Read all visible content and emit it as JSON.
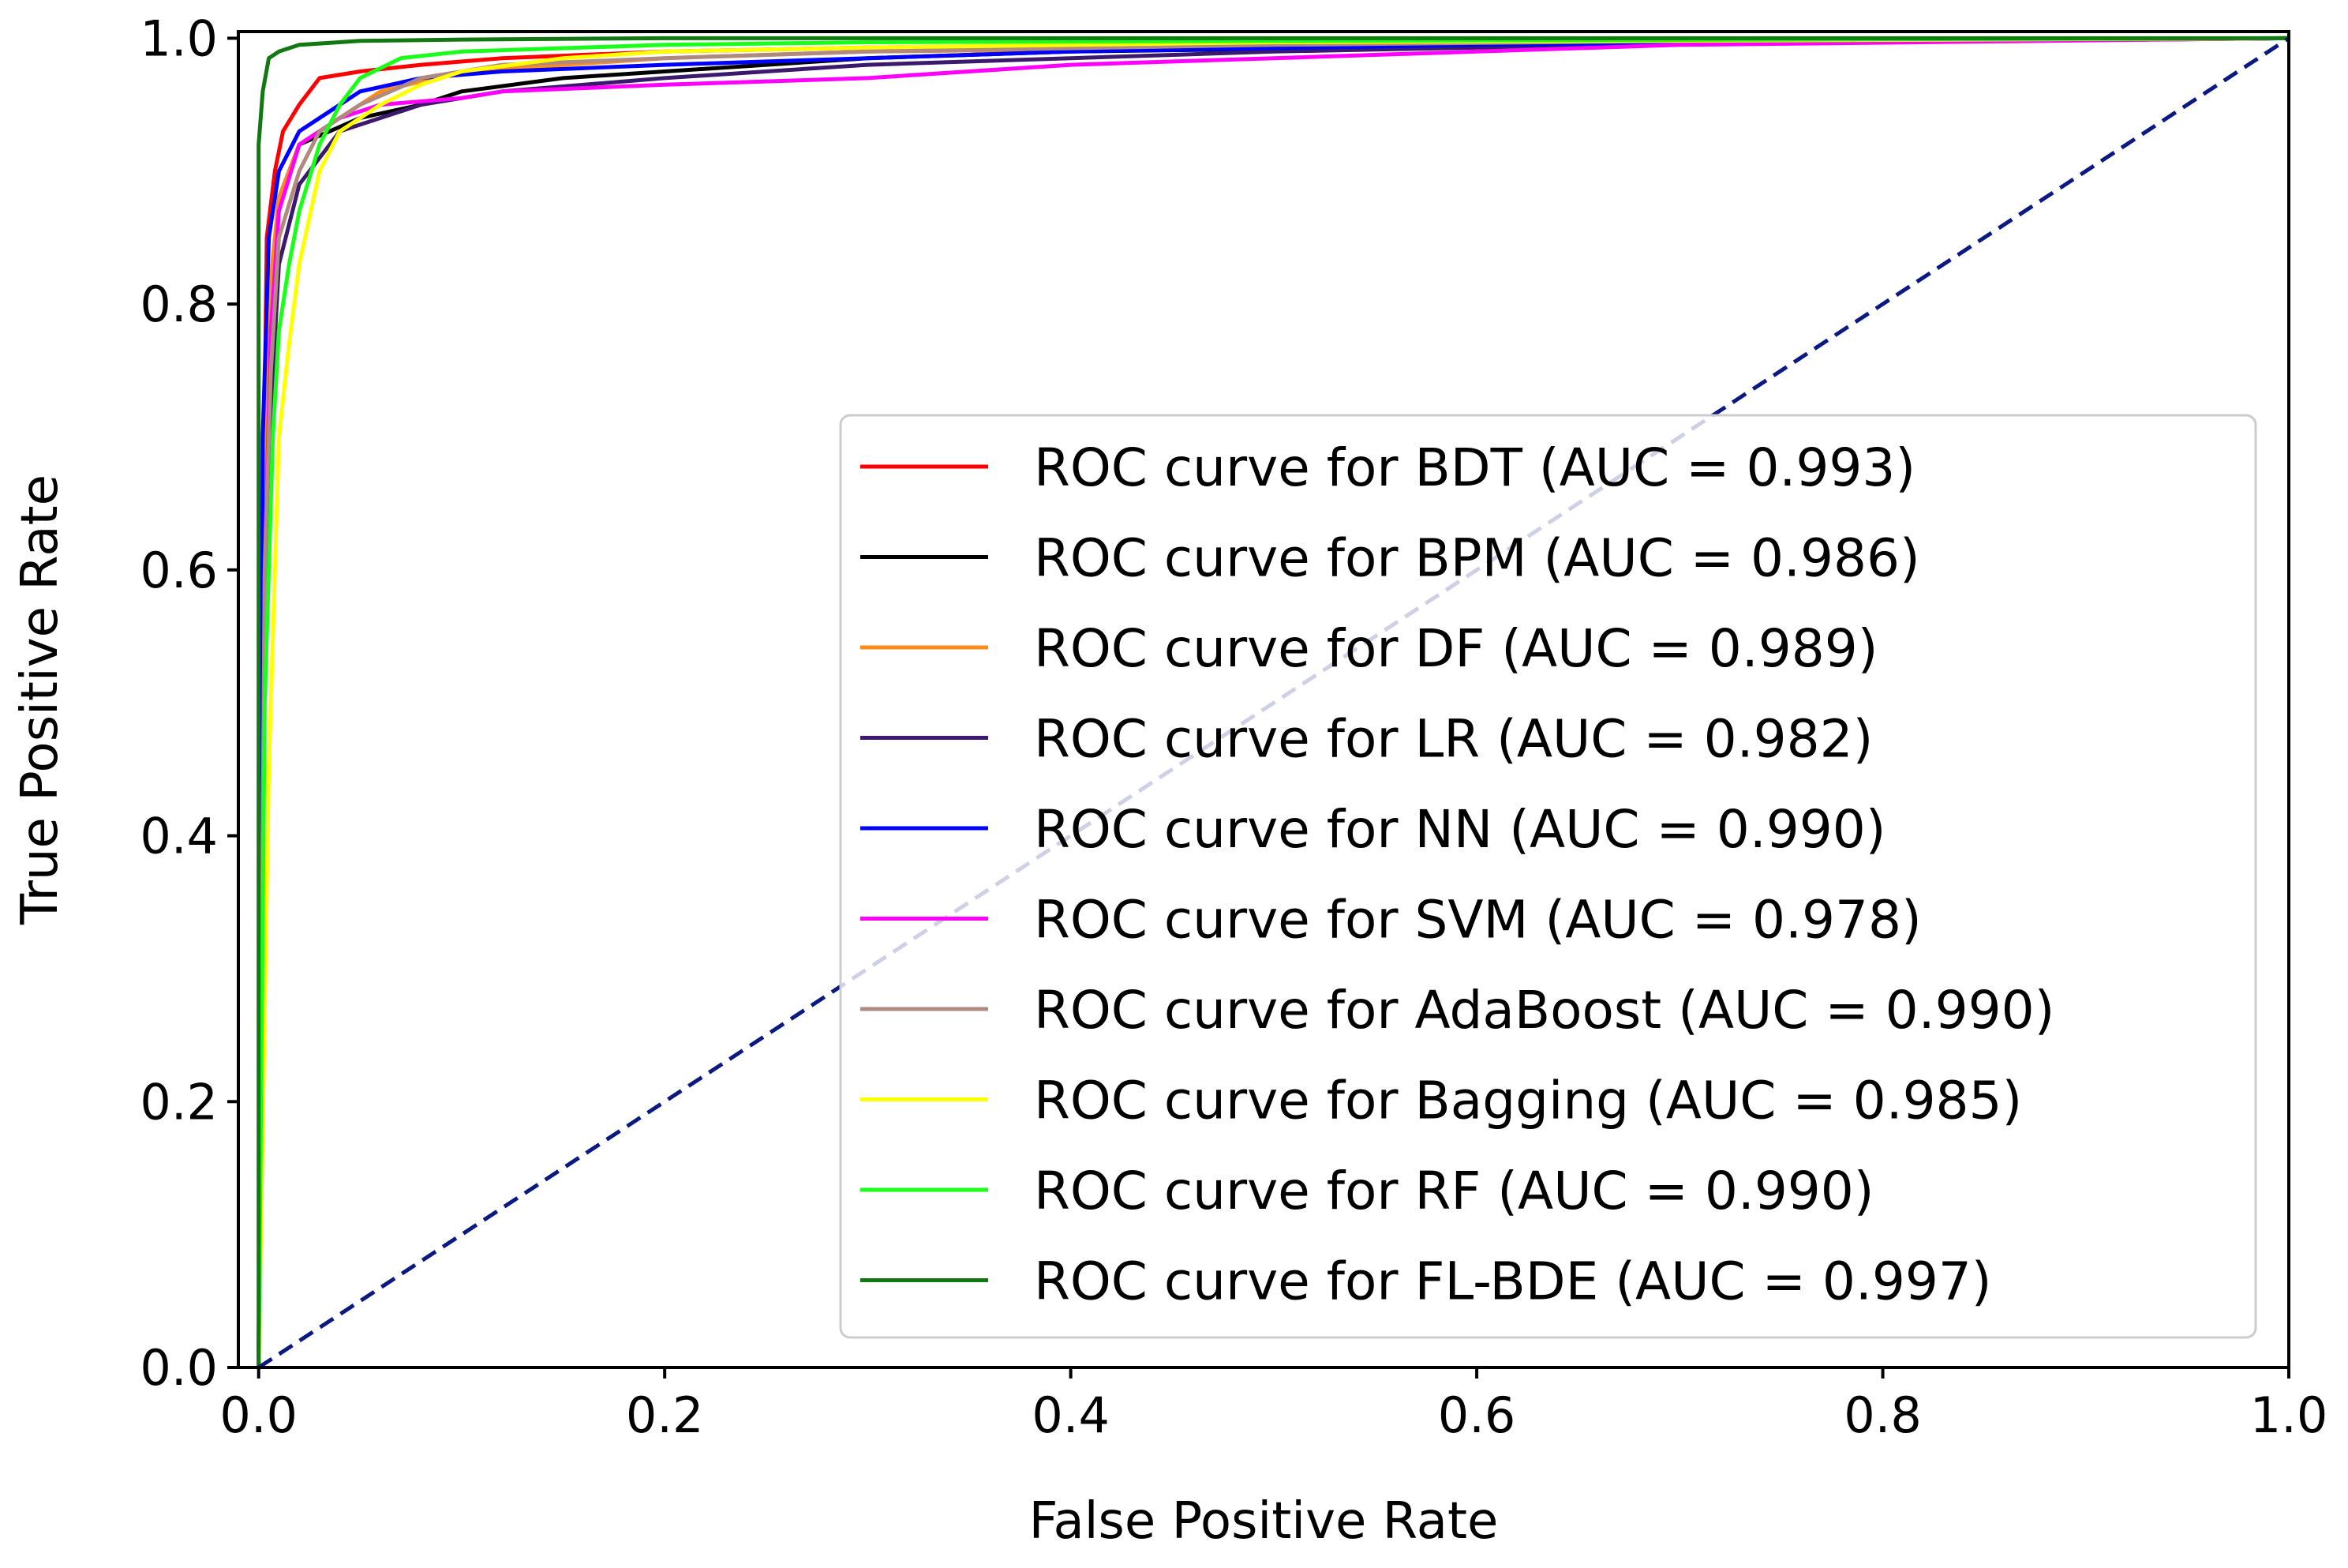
{
  "chart_data": {
    "type": "line",
    "title": "",
    "xlabel": "False Positive Rate",
    "ylabel": "True Positive Rate",
    "xlim": [
      -0.01,
      1.0
    ],
    "ylim": [
      0.0,
      1.005
    ],
    "grid": false,
    "legend_position": "lower-right",
    "x_ticks": [
      0.0,
      0.2,
      0.4,
      0.6,
      0.8,
      1.0
    ],
    "x_tick_labels": [
      "0.0",
      "0.2",
      "0.4",
      "0.6",
      "0.8",
      "1.0"
    ],
    "y_ticks": [
      0.0,
      0.2,
      0.4,
      0.6,
      0.8,
      1.0
    ],
    "y_tick_labels": [
      "0.0",
      "0.2",
      "0.4",
      "0.6",
      "0.8",
      "1.0"
    ],
    "series": [
      {
        "name": "BDT",
        "label": "ROC curve for BDT (AUC = 0.993)",
        "color": "#ff0000",
        "x": [
          0,
          0.002,
          0.004,
          0.008,
          0.012,
          0.02,
          0.03,
          0.05,
          0.08,
          0.12,
          0.2,
          0.3,
          0.5,
          0.7,
          1.0
        ],
        "y": [
          0,
          0.6,
          0.85,
          0.9,
          0.93,
          0.95,
          0.97,
          0.975,
          0.98,
          0.985,
          0.99,
          0.993,
          0.996,
          0.998,
          1.0
        ]
      },
      {
        "name": "BPM",
        "label": "ROC curve for BPM (AUC = 0.986)",
        "color": "#000000",
        "x": [
          0,
          0.002,
          0.005,
          0.01,
          0.02,
          0.05,
          0.08,
          0.1,
          0.15,
          0.2,
          0.25,
          0.3,
          0.4,
          0.5,
          0.7,
          1.0
        ],
        "y": [
          0,
          0.6,
          0.8,
          0.88,
          0.92,
          0.94,
          0.95,
          0.96,
          0.97,
          0.975,
          0.98,
          0.985,
          0.99,
          0.992,
          0.996,
          1.0
        ]
      },
      {
        "name": "DF",
        "label": "ROC curve for DF (AUC = 0.989)",
        "color": "#ff8c1a",
        "x": [
          0,
          0.003,
          0.006,
          0.01,
          0.02,
          0.04,
          0.06,
          0.1,
          0.15,
          0.2,
          0.3,
          0.5,
          0.7,
          1.0
        ],
        "y": [
          0,
          0.65,
          0.82,
          0.88,
          0.92,
          0.94,
          0.96,
          0.975,
          0.98,
          0.985,
          0.99,
          0.993,
          0.997,
          1.0
        ]
      },
      {
        "name": "LR",
        "label": "ROC curve for LR (AUC = 0.982)",
        "color": "#3b1a6e",
        "x": [
          0,
          0.003,
          0.006,
          0.01,
          0.02,
          0.04,
          0.08,
          0.12,
          0.2,
          0.3,
          0.4,
          0.5,
          0.7,
          1.0
        ],
        "y": [
          0,
          0.55,
          0.72,
          0.83,
          0.89,
          0.93,
          0.95,
          0.96,
          0.97,
          0.98,
          0.985,
          0.99,
          0.996,
          1.0
        ]
      },
      {
        "name": "NN",
        "label": "ROC curve for NN (AUC = 0.990)",
        "color": "#0000ff",
        "x": [
          0,
          0.002,
          0.005,
          0.01,
          0.02,
          0.04,
          0.05,
          0.08,
          0.12,
          0.2,
          0.3,
          0.4,
          0.6,
          1.0
        ],
        "y": [
          0,
          0.7,
          0.85,
          0.9,
          0.93,
          0.95,
          0.96,
          0.97,
          0.975,
          0.98,
          0.985,
          0.99,
          0.995,
          1.0
        ]
      },
      {
        "name": "SVM",
        "label": "ROC curve for SVM (AUC = 0.978)",
        "color": "#ff00ff",
        "x": [
          0,
          0.003,
          0.006,
          0.01,
          0.02,
          0.04,
          0.06,
          0.1,
          0.12,
          0.2,
          0.3,
          0.4,
          0.5,
          0.6,
          0.7,
          1.0
        ],
        "y": [
          0,
          0.6,
          0.78,
          0.87,
          0.92,
          0.94,
          0.95,
          0.955,
          0.96,
          0.965,
          0.97,
          0.98,
          0.985,
          0.99,
          0.995,
          1.0
        ]
      },
      {
        "name": "AdaBoost",
        "label": "ROC curve for AdaBoost (AUC = 0.990)",
        "color": "#b08a80",
        "x": [
          0,
          0.003,
          0.006,
          0.01,
          0.02,
          0.03,
          0.05,
          0.08,
          0.12,
          0.2,
          0.3,
          0.5,
          0.7,
          1.0
        ],
        "y": [
          0,
          0.6,
          0.75,
          0.85,
          0.9,
          0.93,
          0.95,
          0.97,
          0.98,
          0.985,
          0.99,
          0.995,
          0.998,
          1.0
        ]
      },
      {
        "name": "Bagging",
        "label": "ROC curve for Bagging (AUC = 0.985)",
        "color": "#ffff00",
        "x": [
          0,
          0.005,
          0.01,
          0.015,
          0.02,
          0.03,
          0.04,
          0.06,
          0.08,
          0.1,
          0.15,
          0.2,
          0.3,
          0.5,
          1.0
        ],
        "y": [
          0,
          0.45,
          0.7,
          0.77,
          0.83,
          0.9,
          0.93,
          0.95,
          0.965,
          0.975,
          0.985,
          0.99,
          0.993,
          0.997,
          1.0
        ]
      },
      {
        "name": "RF",
        "label": "ROC curve for RF (AUC = 0.990)",
        "color": "#1aff1a",
        "x": [
          0,
          0.003,
          0.007,
          0.01,
          0.015,
          0.02,
          0.03,
          0.04,
          0.05,
          0.07,
          0.1,
          0.2,
          0.3,
          0.5,
          1.0
        ],
        "y": [
          0,
          0.5,
          0.7,
          0.78,
          0.83,
          0.87,
          0.92,
          0.95,
          0.97,
          0.985,
          0.99,
          0.995,
          0.997,
          0.998,
          1.0
        ]
      },
      {
        "name": "FL-BDE",
        "label": "ROC curve for FL-BDE (AUC = 0.997)",
        "color": "#127812",
        "x": [
          0,
          0.0,
          0.002,
          0.005,
          0.01,
          0.02,
          0.05,
          0.1,
          0.2,
          0.5,
          1.0
        ],
        "y": [
          0,
          0.92,
          0.96,
          0.985,
          0.99,
          0.995,
          0.998,
          0.999,
          1.0,
          1.0,
          1.0
        ]
      }
    ],
    "reference_line": {
      "x": [
        0,
        1
      ],
      "y": [
        0,
        1
      ],
      "color": "#0b1a80",
      "style": "dashed"
    }
  }
}
